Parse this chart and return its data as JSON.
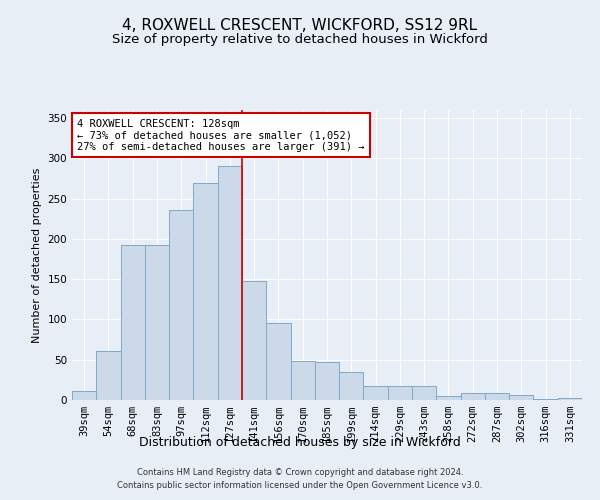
{
  "title": "4, ROXWELL CRESCENT, WICKFORD, SS12 9RL",
  "subtitle": "Size of property relative to detached houses in Wickford",
  "xlabel": "Distribution of detached houses by size in Wickford",
  "ylabel": "Number of detached properties",
  "bar_labels": [
    "39sqm",
    "54sqm",
    "68sqm",
    "83sqm",
    "97sqm",
    "112sqm",
    "127sqm",
    "141sqm",
    "156sqm",
    "170sqm",
    "185sqm",
    "199sqm",
    "214sqm",
    "229sqm",
    "243sqm",
    "258sqm",
    "272sqm",
    "287sqm",
    "302sqm",
    "316sqm",
    "331sqm"
  ],
  "bar_values": [
    11,
    61,
    193,
    193,
    236,
    270,
    290,
    148,
    96,
    48,
    47,
    35,
    17,
    18,
    18,
    5,
    9,
    9,
    6,
    1,
    2
  ],
  "bar_color": "#ccd9e8",
  "bar_edge_color": "#7fa8c8",
  "vline_x_idx": 6,
  "vline_color": "#cc0000",
  "ylim": [
    0,
    360
  ],
  "yticks": [
    0,
    50,
    100,
    150,
    200,
    250,
    300,
    350
  ],
  "annotation_title": "4 ROXWELL CRESCENT: 128sqm",
  "annotation_line1": "← 73% of detached houses are smaller (1,052)",
  "annotation_line2": "27% of semi-detached houses are larger (391) →",
  "footer1": "Contains HM Land Registry data © Crown copyright and database right 2024.",
  "footer2": "Contains public sector information licensed under the Open Government Licence v3.0.",
  "bg_color": "#e8eef6",
  "plot_bg_color": "#e8eef6",
  "title_fontsize": 11,
  "subtitle_fontsize": 9.5,
  "xlabel_fontsize": 9,
  "ylabel_fontsize": 8,
  "tick_fontsize": 7.5,
  "annotation_fontsize": 7.5,
  "footer_fontsize": 6
}
